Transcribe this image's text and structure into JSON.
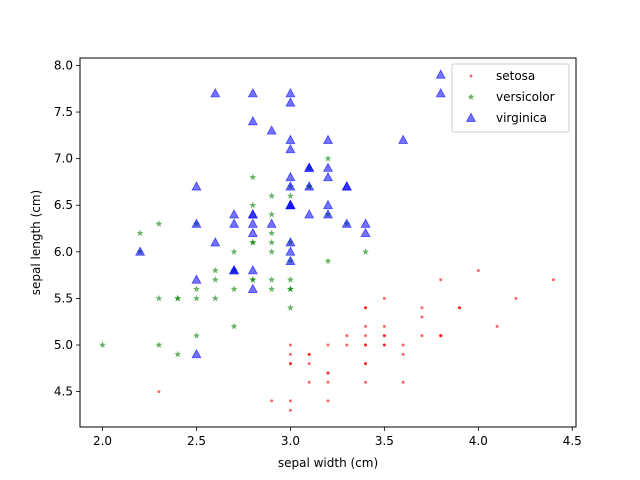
{
  "chart_data": {
    "type": "scatter",
    "title": "",
    "xlabel": "sepal width (cm)",
    "ylabel": "sepal length (cm)",
    "xlim": [
      1.88,
      4.52
    ],
    "ylim": [
      4.12,
      8.08
    ],
    "xticks": [
      "2.0",
      "2.5",
      "3.0",
      "3.5",
      "4.0",
      "4.5"
    ],
    "yticks": [
      "4.5",
      "5.0",
      "5.5",
      "6.0",
      "6.5",
      "7.0",
      "7.5",
      "8.0"
    ],
    "grid": false,
    "legend": "top-right",
    "series": [
      {
        "name": "setosa",
        "marker": "dot",
        "color": "#ff0000",
        "points": [
          [
            3.5,
            5.1
          ],
          [
            3.0,
            4.9
          ],
          [
            3.2,
            4.7
          ],
          [
            3.1,
            4.6
          ],
          [
            3.6,
            5.0
          ],
          [
            3.9,
            5.4
          ],
          [
            3.4,
            4.6
          ],
          [
            3.4,
            5.0
          ],
          [
            2.9,
            4.4
          ],
          [
            3.1,
            4.9
          ],
          [
            3.7,
            5.4
          ],
          [
            3.4,
            4.8
          ],
          [
            3.0,
            4.8
          ],
          [
            3.0,
            4.3
          ],
          [
            4.0,
            5.8
          ],
          [
            4.4,
            5.7
          ],
          [
            3.9,
            5.4
          ],
          [
            3.5,
            5.1
          ],
          [
            3.8,
            5.7
          ],
          [
            3.8,
            5.1
          ],
          [
            3.4,
            5.4
          ],
          [
            3.7,
            5.1
          ],
          [
            3.6,
            4.6
          ],
          [
            3.3,
            5.1
          ],
          [
            3.4,
            4.8
          ],
          [
            3.0,
            5.0
          ],
          [
            3.4,
            5.0
          ],
          [
            3.5,
            5.2
          ],
          [
            3.4,
            5.2
          ],
          [
            3.2,
            4.7
          ],
          [
            3.1,
            4.8
          ],
          [
            3.4,
            5.4
          ],
          [
            4.1,
            5.2
          ],
          [
            4.2,
            5.5
          ],
          [
            3.1,
            4.9
          ],
          [
            3.2,
            5.0
          ],
          [
            3.5,
            5.5
          ],
          [
            3.6,
            4.9
          ],
          [
            3.0,
            4.4
          ],
          [
            3.4,
            5.1
          ],
          [
            3.5,
            5.0
          ],
          [
            2.3,
            4.5
          ],
          [
            3.2,
            4.4
          ],
          [
            3.5,
            5.0
          ],
          [
            3.8,
            5.1
          ],
          [
            3.0,
            4.8
          ],
          [
            3.8,
            5.1
          ],
          [
            3.2,
            4.6
          ],
          [
            3.7,
            5.3
          ],
          [
            3.3,
            5.0
          ]
        ]
      },
      {
        "name": "versicolor",
        "marker": "star",
        "color": "#008000",
        "points": [
          [
            3.2,
            7.0
          ],
          [
            3.2,
            6.4
          ],
          [
            3.1,
            6.9
          ],
          [
            2.3,
            5.5
          ],
          [
            2.8,
            6.5
          ],
          [
            2.8,
            5.7
          ],
          [
            3.3,
            6.3
          ],
          [
            2.4,
            4.9
          ],
          [
            2.9,
            6.6
          ],
          [
            2.7,
            5.2
          ],
          [
            2.0,
            5.0
          ],
          [
            3.0,
            5.9
          ],
          [
            2.2,
            6.0
          ],
          [
            2.9,
            6.1
          ],
          [
            2.9,
            5.6
          ],
          [
            3.1,
            6.7
          ],
          [
            3.0,
            5.6
          ],
          [
            2.7,
            5.8
          ],
          [
            2.2,
            6.2
          ],
          [
            2.5,
            5.6
          ],
          [
            3.2,
            5.9
          ],
          [
            2.8,
            6.1
          ],
          [
            2.5,
            6.3
          ],
          [
            2.8,
            6.1
          ],
          [
            2.9,
            6.4
          ],
          [
            3.0,
            6.6
          ],
          [
            2.8,
            6.8
          ],
          [
            3.0,
            6.7
          ],
          [
            2.9,
            6.0
          ],
          [
            2.6,
            5.7
          ],
          [
            2.4,
            5.5
          ],
          [
            2.4,
            5.5
          ],
          [
            2.7,
            5.8
          ],
          [
            2.7,
            6.0
          ],
          [
            3.0,
            5.4
          ],
          [
            3.4,
            6.0
          ],
          [
            3.1,
            6.7
          ],
          [
            2.3,
            6.3
          ],
          [
            3.0,
            5.6
          ],
          [
            2.5,
            5.5
          ],
          [
            2.6,
            5.5
          ],
          [
            3.0,
            6.1
          ],
          [
            2.6,
            5.8
          ],
          [
            2.3,
            5.0
          ],
          [
            2.7,
            5.6
          ],
          [
            3.0,
            5.7
          ],
          [
            2.9,
            5.7
          ],
          [
            2.9,
            6.2
          ],
          [
            2.5,
            5.1
          ],
          [
            2.8,
            5.7
          ]
        ]
      },
      {
        "name": "virginica",
        "marker": "triangle",
        "color": "#0000ff",
        "points": [
          [
            3.3,
            6.3
          ],
          [
            2.7,
            5.8
          ],
          [
            3.0,
            7.1
          ],
          [
            2.9,
            6.3
          ],
          [
            3.0,
            6.5
          ],
          [
            3.0,
            7.6
          ],
          [
            2.5,
            4.9
          ],
          [
            2.9,
            7.3
          ],
          [
            2.5,
            6.7
          ],
          [
            3.6,
            7.2
          ],
          [
            3.2,
            6.5
          ],
          [
            2.7,
            6.4
          ],
          [
            3.0,
            6.8
          ],
          [
            2.5,
            5.7
          ],
          [
            2.8,
            5.8
          ],
          [
            3.2,
            6.4
          ],
          [
            3.0,
            6.5
          ],
          [
            3.8,
            7.7
          ],
          [
            2.6,
            7.7
          ],
          [
            2.2,
            6.0
          ],
          [
            3.2,
            6.9
          ],
          [
            2.8,
            5.6
          ],
          [
            2.8,
            7.7
          ],
          [
            2.7,
            6.3
          ],
          [
            3.3,
            6.7
          ],
          [
            3.2,
            7.2
          ],
          [
            2.8,
            6.2
          ],
          [
            3.0,
            6.1
          ],
          [
            2.8,
            6.4
          ],
          [
            3.0,
            7.2
          ],
          [
            2.8,
            7.4
          ],
          [
            3.8,
            7.9
          ],
          [
            2.8,
            6.4
          ],
          [
            2.8,
            6.3
          ],
          [
            2.6,
            6.1
          ],
          [
            3.0,
            7.7
          ],
          [
            3.4,
            6.3
          ],
          [
            3.1,
            6.4
          ],
          [
            3.0,
            6.0
          ],
          [
            3.1,
            6.9
          ],
          [
            3.1,
            6.7
          ],
          [
            3.1,
            6.9
          ],
          [
            2.7,
            5.8
          ],
          [
            3.2,
            6.8
          ],
          [
            3.3,
            6.7
          ],
          [
            3.0,
            6.7
          ],
          [
            2.5,
            6.3
          ],
          [
            3.0,
            6.5
          ],
          [
            3.4,
            6.2
          ],
          [
            3.0,
            5.9
          ]
        ]
      }
    ]
  }
}
